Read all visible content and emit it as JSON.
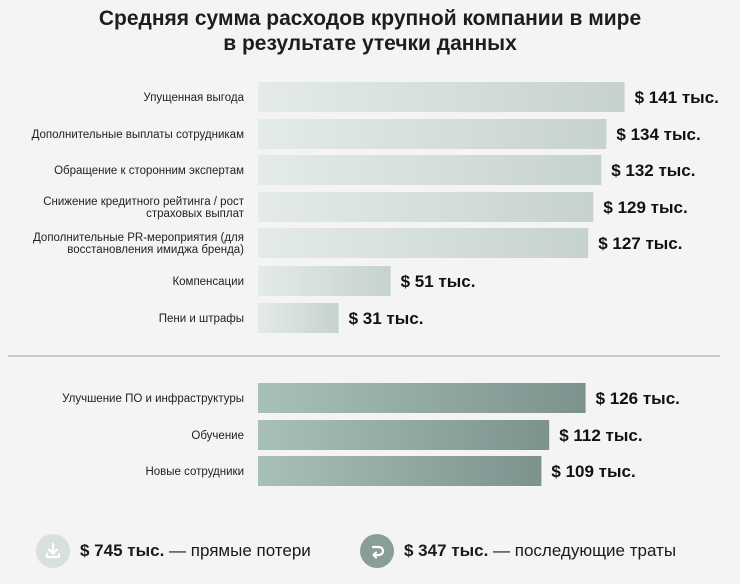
{
  "title_line1": "Средняя сумма расходов крупной компании в мире",
  "title_line2": "в результате утечки данных",
  "chart_data": {
    "type": "bar",
    "orientation": "horizontal",
    "value_format": "$ {v} тыс.",
    "groups": [
      {
        "categories": [
          [
            "Упущенная выгода"
          ],
          [
            "Дополнительные выплаты сотрудникам"
          ],
          [
            "Обращение к сторонним экспертам"
          ],
          [
            "Снижение кредитного рейтинга / рост",
            "страховых выплат"
          ],
          [
            "Дополнительные PR-мероприятия (для",
            "восстановления имиджа бренда)"
          ],
          [
            "Компенсации"
          ],
          [
            "Пени и штрафы"
          ]
        ],
        "values": [
          141,
          134,
          132,
          129,
          127,
          51,
          31
        ],
        "value_labels": [
          "$ 141 тыс.",
          "$ 134 тыс.",
          "$ 132 тыс.",
          "$ 129 тыс.",
          "$ 127 тыс.",
          "$ 51 тыс.",
          "$ 31 тыс."
        ],
        "colors": [
          "#e4ebe8",
          "#c6d2ce"
        ]
      },
      {
        "categories": [
          [
            "Улучшение ПО и инфраструктуры"
          ],
          [
            "Обучение"
          ],
          [
            "Новые сотрудники"
          ]
        ],
        "values": [
          126,
          112,
          109
        ],
        "value_labels": [
          "$ 126 тыс.",
          "$ 112 тыс.",
          "$ 109 тыс."
        ],
        "colors": [
          "#a9c0ba",
          "#7d928d"
        ]
      }
    ]
  },
  "legend": {
    "direct": {
      "amount": "$ 745 тыс.",
      "text": " — прямые потери",
      "icon": "download-arrow-icon",
      "color": "#d7e0dd"
    },
    "subsequent": {
      "amount": "$ 347 тыс.",
      "text": " — последующие траты",
      "icon": "return-arrow-icon",
      "color": "#8a9e99"
    }
  }
}
